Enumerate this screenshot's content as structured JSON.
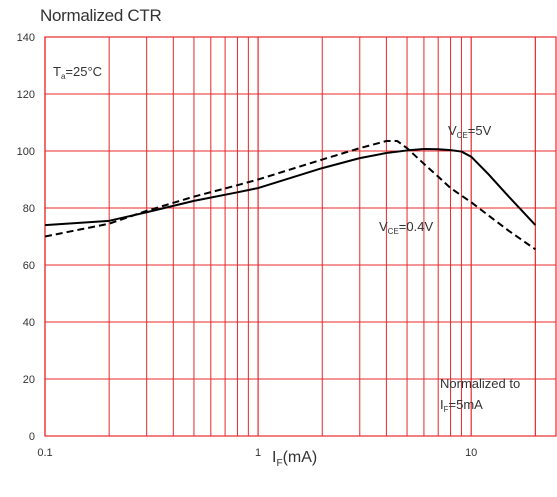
{
  "chart_data": {
    "type": "line",
    "title": "Normalized CTR",
    "xlabel": {
      "main": "I",
      "sub": "F",
      "unit": "(mA)"
    },
    "ylabel": "",
    "x_scale": "log",
    "xlim": [
      0.1,
      25
    ],
    "ylim": [
      0,
      140
    ],
    "x_ticks": [
      "0.1",
      "1",
      "10"
    ],
    "x_tick_values": [
      0.1,
      1,
      10
    ],
    "y_ticks": [
      "0",
      "20",
      "40",
      "60",
      "80",
      "100",
      "120",
      "140"
    ],
    "y_tick_values": [
      0,
      20,
      40,
      60,
      80,
      100,
      120,
      140
    ],
    "grid": true,
    "grid_color": "#e8282a",
    "annotations": {
      "temperature": {
        "main": "T",
        "sub": "a",
        "rest": "=25°C"
      },
      "vce5": {
        "main": "V",
        "sub": "CE",
        "rest": "=5V"
      },
      "vce04": {
        "main": "V",
        "sub": "CE",
        "rest": "=0.4V"
      },
      "note_line1": "Normalized to",
      "note_line2": {
        "main": "I",
        "sub": "F",
        "rest": "=5mA"
      }
    },
    "series": [
      {
        "name": "VCE=5V",
        "style": "solid",
        "x": [
          0.1,
          0.2,
          0.3,
          0.5,
          0.8,
          1,
          2,
          3,
          4,
          5,
          6,
          7,
          8,
          9,
          10,
          12,
          15,
          20
        ],
        "y": [
          74,
          75.5,
          78.5,
          82.5,
          85.5,
          87,
          94,
          97.5,
          99.3,
          100.2,
          100.7,
          100.6,
          100.3,
          99.8,
          98,
          92,
          84,
          74
        ]
      },
      {
        "name": "VCE=0.4V",
        "style": "dashed",
        "x": [
          0.1,
          0.2,
          0.3,
          0.5,
          0.8,
          1,
          2,
          3,
          4,
          4.5,
          5,
          6,
          7,
          8,
          10,
          15,
          20
        ],
        "y": [
          70,
          74.5,
          79,
          84,
          88,
          90,
          97,
          101,
          103.5,
          103.5,
          101,
          95.5,
          91,
          87,
          82,
          72,
          65.5
        ]
      }
    ],
    "line_color": "#000000"
  }
}
